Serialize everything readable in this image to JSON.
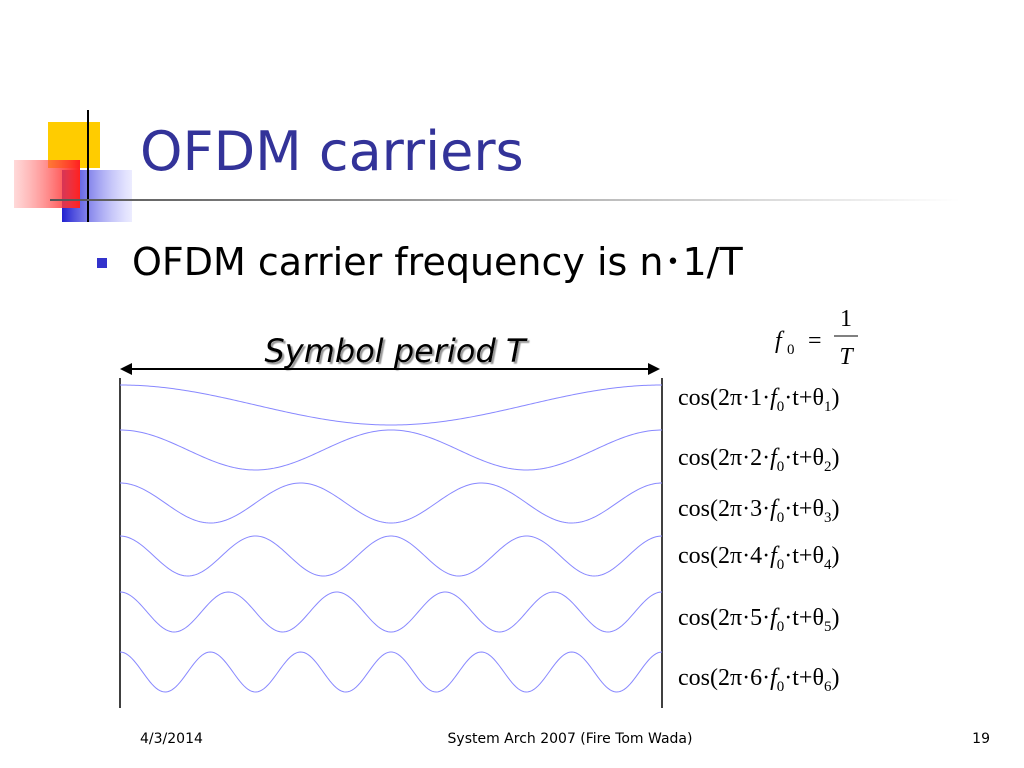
{
  "title": "OFDM carriers",
  "bullet": "OFDM carrier frequency is n･1/T",
  "arrow_label": "Symbol period T",
  "base_formula": {
    "f": "f",
    "sub": "0",
    "eq": "=",
    "num": "1",
    "den": "T"
  },
  "carriers": [
    {
      "cycles": 1,
      "parts": [
        "cos(2π·1·",
        "f",
        "0",
        "·t+θ",
        "1",
        ")"
      ]
    },
    {
      "cycles": 2,
      "parts": [
        "cos(2π·2·",
        "f",
        "0",
        "·t+θ",
        "2",
        ")"
      ]
    },
    {
      "cycles": 3,
      "parts": [
        "cos(2π·3·",
        "f",
        "0",
        "·t+θ",
        "3",
        ")"
      ]
    },
    {
      "cycles": 4,
      "parts": [
        "cos(2π·4·",
        "f",
        "0",
        "·t+θ",
        "4",
        ")"
      ]
    },
    {
      "cycles": 5,
      "parts": [
        "cos(2π·5·",
        "f",
        "0",
        "·t+θ",
        "5",
        ")"
      ]
    },
    {
      "cycles": 6,
      "parts": [
        "cos(2π·6·",
        "f",
        "0",
        "·t+θ",
        "6",
        ")"
      ]
    }
  ],
  "footer": {
    "date": "4/3/2014",
    "center": "System Arch 2007  (Fire Tom Wada)",
    "page": "19"
  }
}
